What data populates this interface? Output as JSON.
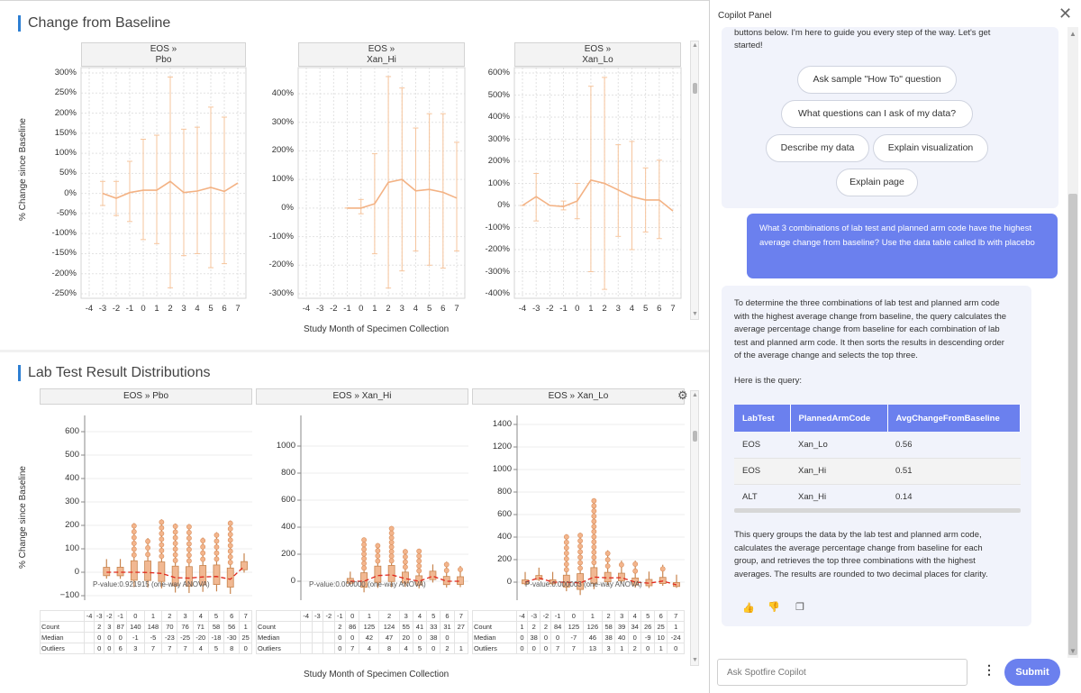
{
  "left": {
    "section1_title": "Change from Baseline",
    "section2_title": "Lab Test Result Distributions",
    "y_axis_label": "% Change since Baseline",
    "x_axis_label": "Study Month of Specimen Collection",
    "x_ticks": [
      "-4",
      "-3",
      "-2",
      "-1",
      "0",
      "1",
      "2",
      "3",
      "4",
      "5",
      "6",
      "7"
    ],
    "line_panels": [
      {
        "head1": "EOS »",
        "head2": "Pbo",
        "yticks": [
          "300%",
          "250%",
          "200%",
          "150%",
          "100%",
          "50%",
          "0%",
          "-50%",
          "-100%",
          "-150%",
          "-200%",
          "-250%"
        ]
      },
      {
        "head1": "EOS »",
        "head2": "Xan_Hi",
        "yticks": [
          "400%",
          "300%",
          "200%",
          "100%",
          "0%",
          "-100%",
          "-200%",
          "-300%"
        ]
      },
      {
        "head1": "EOS »",
        "head2": "Xan_Lo",
        "yticks": [
          "600%",
          "500%",
          "400%",
          "300%",
          "200%",
          "100%",
          "0%",
          "-100%",
          "-200%",
          "-300%",
          "-400%"
        ]
      }
    ],
    "box_panels": [
      {
        "head": "EOS » Pbo",
        "yticks": [
          "600",
          "500",
          "400",
          "300",
          "200",
          "100",
          "0",
          "−100"
        ],
        "pvalue": "P-value:0.921915 (one-way ANOVA)",
        "xticks": [
          "-4",
          "-3",
          "-2",
          "-1",
          "0",
          "1",
          "2",
          "3",
          "4",
          "5",
          "6",
          "7"
        ],
        "count": [
          "",
          "2",
          "3",
          "87",
          "140",
          "148",
          "70",
          "76",
          "71",
          "58",
          "56",
          "1"
        ],
        "median": [
          "",
          "0",
          "0",
          "0",
          "-1",
          "-5",
          "-23",
          "-25",
          "-20",
          "-18",
          "-30",
          "25"
        ],
        "outliers": [
          "",
          "0",
          "0",
          "6",
          "3",
          "7",
          "7",
          "7",
          "4",
          "5",
          "8",
          "0"
        ]
      },
      {
        "head": "EOS » Xan_Hi",
        "yticks": [
          "1000",
          "800",
          "600",
          "400",
          "200",
          "0"
        ],
        "pvalue": "P-value:0.000000 (one-way ANOVA)",
        "xticks": [
          "-4",
          "-3",
          "-2",
          "-1",
          "0",
          "1",
          "2",
          "3",
          "4",
          "5",
          "6",
          "7"
        ],
        "count": [
          "",
          "",
          "",
          "2",
          "86",
          "125",
          "124",
          "55",
          "41",
          "33",
          "31",
          "27"
        ],
        "median": [
          "",
          "",
          "",
          "0",
          "0",
          "42",
          "47",
          "20",
          "0",
          "38",
          "0",
          ""
        ],
        "outliers": [
          "",
          "",
          "",
          "0",
          "7",
          "4",
          "8",
          "4",
          "5",
          "0",
          "2",
          "1"
        ]
      },
      {
        "head": "EOS » Xan_Lo",
        "yticks": [
          "1400",
          "1200",
          "1000",
          "800",
          "600",
          "400",
          "200",
          "0"
        ],
        "pvalue": "P-value:0.000003 (one-way ANOVA)",
        "xticks": [
          "-4",
          "-3",
          "-2",
          "-1",
          "0",
          "1",
          "2",
          "3",
          "4",
          "5",
          "6",
          "7"
        ],
        "count": [
          "1",
          "2",
          "2",
          "84",
          "125",
          "126",
          "58",
          "39",
          "34",
          "26",
          "25",
          "1"
        ],
        "median": [
          "0",
          "38",
          "0",
          "0",
          "-7",
          "46",
          "38",
          "40",
          "0",
          "-9",
          "10",
          "-24"
        ],
        "outliers": [
          "0",
          "0",
          "0",
          "7",
          "7",
          "13",
          "3",
          "1",
          "2",
          "0",
          "1",
          "0"
        ]
      }
    ],
    "stat_labels": {
      "count": "Count",
      "median": "Median",
      "outliers": "Outliers"
    }
  },
  "copilot": {
    "title": "Copilot Panel",
    "intro_text_1": "buttons below. I'm here to guide you every step of the way. Let's get",
    "intro_text_2": "started!",
    "chips": {
      "how_to": "Ask sample \"How To\" question",
      "what_questions": "What questions can I ask of my data?",
      "describe": "Describe my data",
      "explain_viz": "Explain visualization",
      "explain_page": "Explain page"
    },
    "user_message": "What 3 combinations of lab test and planned arm code have the highest average change from baseline? Use the data table called lb with placebo",
    "answer_lines": [
      "To determine the three combinations of lab test and planned arm code",
      "with the highest average change from baseline, the query calculates the",
      "average percentage change from baseline for each combination of lab",
      "test and planned arm code. It then sorts the results in descending order",
      "of the average change and selects the top three."
    ],
    "query_label": "Here is the query:",
    "table": {
      "headers": [
        "LabTest",
        "PlannedArmCode",
        "AvgChangeFromBaseline"
      ],
      "rows": [
        [
          "EOS",
          "Xan_Lo",
          "0.56"
        ],
        [
          "EOS",
          "Xan_Hi",
          "0.51"
        ],
        [
          "ALT",
          "Xan_Hi",
          "0.14"
        ]
      ]
    },
    "summary_lines": [
      "This query groups the data by the lab test and planned arm code,",
      "calculates the average percentage change from baseline for each",
      "group, and retrieves the top three combinations with the highest",
      "averages. The results are rounded to two decimal places for clarity."
    ],
    "input_placeholder": "Ask Spotfire Copilot",
    "submit_label": "Submit",
    "accent_color": "#6b80ee"
  },
  "chart_data": [
    {
      "type": "line",
      "title": "EOS » Pbo",
      "xlabel": "Study Month of Specimen Collection",
      "ylabel": "% Change since Baseline",
      "x": [
        -4,
        -3,
        -2,
        -1,
        0,
        1,
        2,
        3,
        4,
        5,
        6,
        7
      ],
      "series": [
        {
          "values": [
            null,
            0,
            -12,
            2,
            8,
            8,
            30,
            2,
            6,
            15,
            5,
            26
          ],
          "err_hi": [
            null,
            30,
            30,
            80,
            135,
            145,
            290,
            160,
            165,
            215,
            190,
            null
          ],
          "err_lo": [
            null,
            -30,
            -55,
            -70,
            -115,
            -125,
            -235,
            -155,
            -150,
            -185,
            -175,
            null
          ]
        }
      ],
      "ylim": [
        -250,
        300
      ]
    },
    {
      "type": "line",
      "title": "EOS » Xan_Hi",
      "xlabel": "Study Month of Specimen Collection",
      "ylabel": "% Change since Baseline",
      "x": [
        -4,
        -3,
        -2,
        -1,
        0,
        1,
        2,
        3,
        4,
        5,
        6,
        7
      ],
      "series": [
        {
          "values": [
            null,
            null,
            null,
            0,
            0,
            15,
            90,
            100,
            60,
            65,
            55,
            35
          ],
          "err_hi": [
            null,
            null,
            null,
            0,
            30,
            190,
            460,
            420,
            280,
            330,
            330,
            230
          ],
          "err_lo": [
            null,
            null,
            null,
            0,
            -20,
            -160,
            -280,
            -220,
            -150,
            -200,
            -210,
            -150
          ]
        }
      ],
      "ylim": [
        -300,
        450
      ]
    },
    {
      "type": "line",
      "title": "EOS » Xan_Lo",
      "xlabel": "Study Month of Specimen Collection",
      "ylabel": "% Change since Baseline",
      "x": [
        -4,
        -3,
        -2,
        -1,
        0,
        1,
        2,
        3,
        4,
        5,
        6,
        7
      ],
      "series": [
        {
          "values": [
            0,
            40,
            0,
            -5,
            20,
            115,
            100,
            70,
            40,
            25,
            25,
            -25
          ],
          "err_hi": [
            0,
            145,
            null,
            20,
            100,
            540,
            580,
            275,
            290,
            170,
            205,
            null
          ],
          "err_lo": [
            0,
            -70,
            null,
            -20,
            -60,
            -300,
            -380,
            -140,
            -200,
            -120,
            -150,
            null
          ]
        }
      ],
      "ylim": [
        -400,
        600
      ]
    }
  ]
}
